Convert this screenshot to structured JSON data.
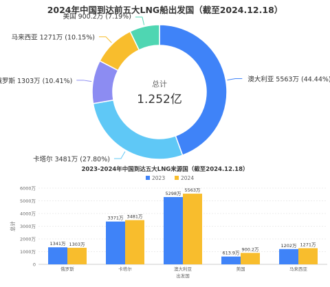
{
  "colors": {
    "australia": "#3f83f8",
    "qatar": "#5fc8f6",
    "russia": "#8c8cf2",
    "malaysia": "#f8bd2d",
    "usa": "#4fd6b2",
    "series_2023": "#3f83f8",
    "series_2024": "#f8bd2d",
    "grid": "#e6e6e6",
    "text": "#333333",
    "muted": "#666666"
  },
  "chart_data": [
    {
      "type": "pie",
      "title": "2024年中国到达前五大LNG船出发国（截至2024.12.18）",
      "center_label": "总计",
      "center_value": "1.252亿",
      "slices": [
        {
          "key": "australia",
          "name": "澳大利亚",
          "value": 5563,
          "percent": 44.44,
          "label": "澳大利亚 5563万 (44.44%)"
        },
        {
          "key": "qatar",
          "name": "卡塔尔",
          "value": 3481,
          "percent": 27.8,
          "label": "卡塔尔 3481万 (27.80%)"
        },
        {
          "key": "russia",
          "name": "俄罗斯",
          "value": 1303,
          "percent": 10.41,
          "label": "俄罗斯 1303万 (10.41%)"
        },
        {
          "key": "malaysia",
          "name": "马来西亚",
          "value": 1271,
          "percent": 10.15,
          "label": "马来西亚 1271万 (10.15%)"
        },
        {
          "key": "usa",
          "name": "美国",
          "value": 900.2,
          "percent": 7.19,
          "label": "美国 900.2万 (7.19%)"
        }
      ]
    },
    {
      "type": "bar",
      "title": "2023-2024年中国到达五大LNG来源国（截至2024.12.18）",
      "xlabel": "出发国",
      "ylabel": "总计",
      "ylim": [
        0,
        6000
      ],
      "yticks": [
        0,
        1000,
        2000,
        3000,
        4000,
        5000,
        6000
      ],
      "ytick_labels": [
        "0",
        "1000万",
        "2000万",
        "3000万",
        "4000万",
        "5000万",
        "6000万"
      ],
      "legend_position": "top-center",
      "categories": [
        "俄罗斯",
        "卡塔尔",
        "澳大利亚",
        "美国",
        "马来西亚"
      ],
      "series": [
        {
          "name": "2023",
          "values": [
            1341,
            3371,
            5298,
            613.9,
            1202
          ],
          "labels": [
            "1341万",
            "3371万",
            "5298万",
            "613.9万",
            "1202万"
          ]
        },
        {
          "name": "2024",
          "values": [
            1303,
            3481,
            5563,
            900.2,
            1271
          ],
          "labels": [
            "1303万",
            "3481万",
            "5563万",
            "900.2万",
            "1271万"
          ]
        }
      ]
    }
  ]
}
